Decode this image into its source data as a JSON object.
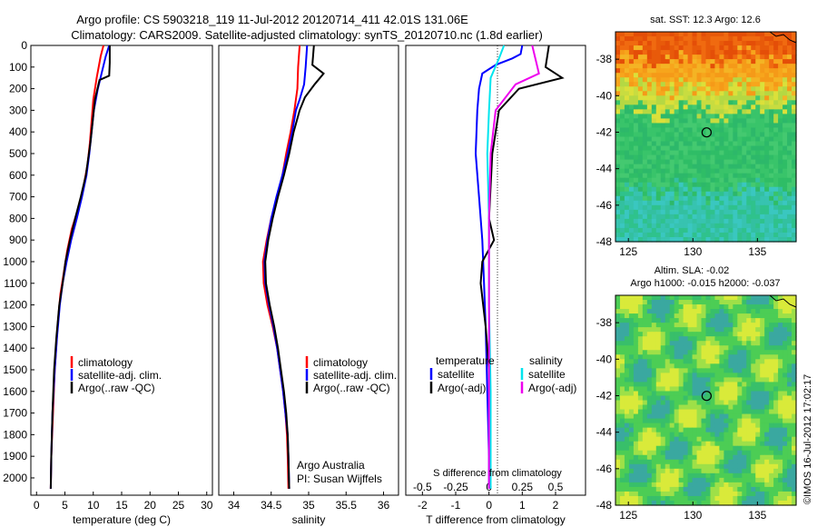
{
  "title_line1": "Argo profile: CS 5903218_119 11-Jul-2012 20120714_411 42.01S 131.06E",
  "title_line2": "Climatology: CARS2009. Satellite-adjusted climatology: synTS_20120710.nc (1.8d earlier)",
  "chart_data": [
    {
      "id": "temperature",
      "type": "line",
      "xlabel": "temperature (deg C)",
      "xlim": [
        -1,
        31
      ],
      "ylim": [
        2080,
        0
      ],
      "xticks": [
        "0",
        "5",
        "10",
        "15",
        "20",
        "25",
        "30"
      ],
      "yticks": [
        "0",
        "100",
        "200",
        "300",
        "400",
        "500",
        "600",
        "700",
        "800",
        "900",
        "1000",
        "1100",
        "1200",
        "1300",
        "1400",
        "1500",
        "1600",
        "1700",
        "1800",
        "1900",
        "2000"
      ],
      "legend": [
        "climatology",
        "satellite-adj. clim.",
        "Argo(..raw -QC)"
      ],
      "colors": [
        "#ff0000",
        "#0000ff",
        "#000000"
      ],
      "series": [
        {
          "name": "climatology",
          "points": [
            [
              11.8,
              0
            ],
            [
              11.3,
              50
            ],
            [
              10.6,
              150
            ],
            [
              10.0,
              250
            ],
            [
              9.7,
              350
            ],
            [
              9.4,
              450
            ],
            [
              9.0,
              550
            ],
            [
              8.3,
              650
            ],
            [
              7.4,
              750
            ],
            [
              6.2,
              850
            ],
            [
              5.4,
              950
            ],
            [
              4.8,
              1050
            ],
            [
              4.2,
              1150
            ],
            [
              3.7,
              1300
            ],
            [
              3.2,
              1500
            ],
            [
              2.9,
              1700
            ],
            [
              2.6,
              1900
            ],
            [
              2.5,
              2050
            ]
          ]
        },
        {
          "name": "satellite-adj. clim.",
          "points": [
            [
              12.8,
              0
            ],
            [
              12.2,
              50
            ],
            [
              10.8,
              200
            ],
            [
              10.1,
              300
            ],
            [
              9.7,
              400
            ],
            [
              9.3,
              500
            ],
            [
              8.8,
              600
            ],
            [
              8.0,
              700
            ],
            [
              7.1,
              800
            ],
            [
              6.1,
              900
            ],
            [
              5.3,
              1000
            ],
            [
              4.6,
              1100
            ],
            [
              4.1,
              1200
            ],
            [
              3.6,
              1350
            ],
            [
              3.2,
              1500
            ],
            [
              2.8,
              1700
            ],
            [
              2.6,
              1900
            ],
            [
              2.5,
              2050
            ]
          ]
        },
        {
          "name": "Argo(..raw -QC)",
          "points": [
            [
              12.9,
              0
            ],
            [
              12.9,
              80
            ],
            [
              12.8,
              140
            ],
            [
              11.1,
              160
            ],
            [
              10.3,
              250
            ],
            [
              9.9,
              350
            ],
            [
              9.5,
              450
            ],
            [
              8.7,
              600
            ],
            [
              7.8,
              700
            ],
            [
              6.8,
              800
            ],
            [
              5.9,
              900
            ],
            [
              5.1,
              1000
            ],
            [
              4.6,
              1100
            ],
            [
              4.0,
              1200
            ],
            [
              3.5,
              1350
            ],
            [
              3.1,
              1500
            ],
            [
              2.8,
              1700
            ],
            [
              2.6,
              1900
            ],
            [
              2.5,
              2050
            ]
          ]
        }
      ]
    },
    {
      "id": "salinity",
      "type": "line",
      "xlabel": "salinity",
      "xlim": [
        33.8,
        36.2
      ],
      "ylim": [
        2080,
        0
      ],
      "xticks": [
        "34",
        "34.5",
        "35",
        "35.5",
        "36"
      ],
      "legend": [
        "climatology",
        "satellite-adj. clim.",
        "Argo(..raw -QC)"
      ],
      "colors": [
        "#ff0000",
        "#0000ff",
        "#000000"
      ],
      "annotation_1": "Argo Australia",
      "annotation_2": "PI: Susan Wijffels",
      "series": [
        {
          "name": "climatology",
          "points": [
            [
              34.88,
              0
            ],
            [
              34.86,
              100
            ],
            [
              34.85,
              200
            ],
            [
              34.81,
              300
            ],
            [
              34.76,
              400
            ],
            [
              34.7,
              500
            ],
            [
              34.65,
              600
            ],
            [
              34.58,
              700
            ],
            [
              34.5,
              800
            ],
            [
              34.44,
              900
            ],
            [
              34.39,
              1000
            ],
            [
              34.4,
              1100
            ],
            [
              34.45,
              1200
            ],
            [
              34.52,
              1300
            ],
            [
              34.58,
              1400
            ],
            [
              34.62,
              1500
            ],
            [
              34.66,
              1600
            ],
            [
              34.69,
              1700
            ],
            [
              34.71,
              1800
            ],
            [
              34.72,
              1900
            ],
            [
              34.73,
              2050
            ]
          ]
        },
        {
          "name": "satellite-adj. clim.",
          "points": [
            [
              34.98,
              0
            ],
            [
              34.96,
              100
            ],
            [
              34.94,
              180
            ],
            [
              34.88,
              250
            ],
            [
              34.83,
              300
            ],
            [
              34.78,
              400
            ],
            [
              34.72,
              500
            ],
            [
              34.65,
              600
            ],
            [
              34.57,
              700
            ],
            [
              34.5,
              800
            ],
            [
              34.45,
              900
            ],
            [
              34.41,
              1000
            ],
            [
              34.42,
              1100
            ],
            [
              34.47,
              1200
            ],
            [
              34.53,
              1300
            ],
            [
              34.58,
              1400
            ],
            [
              34.62,
              1500
            ],
            [
              34.66,
              1600
            ],
            [
              34.69,
              1700
            ],
            [
              34.72,
              1800
            ],
            [
              34.73,
              1900
            ],
            [
              34.74,
              2050
            ]
          ]
        },
        {
          "name": "Argo(..raw -QC)",
          "points": [
            [
              35.07,
              0
            ],
            [
              35.05,
              90
            ],
            [
              35.2,
              130
            ],
            [
              35.08,
              180
            ],
            [
              34.95,
              240
            ],
            [
              34.88,
              300
            ],
            [
              34.8,
              400
            ],
            [
              34.74,
              500
            ],
            [
              34.67,
              600
            ],
            [
              34.59,
              700
            ],
            [
              34.52,
              800
            ],
            [
              34.46,
              900
            ],
            [
              34.42,
              1000
            ],
            [
              34.43,
              1100
            ],
            [
              34.48,
              1200
            ],
            [
              34.54,
              1300
            ],
            [
              34.59,
              1400
            ],
            [
              34.63,
              1500
            ],
            [
              34.67,
              1600
            ],
            [
              34.7,
              1700
            ],
            [
              34.72,
              1800
            ],
            [
              34.73,
              1900
            ],
            [
              34.74,
              2050
            ]
          ]
        }
      ]
    },
    {
      "id": "difference",
      "type": "line",
      "xlabel": "T difference from climatology",
      "top_axis_label": "S difference from climatology",
      "xlim": [
        -2.5,
        2.9
      ],
      "ylim": [
        2080,
        0
      ],
      "xticks": [
        "-2",
        "-1",
        "0",
        "1",
        "2"
      ],
      "top_ticks": [
        "-0.5",
        "-0.25",
        "0",
        "0.25",
        "0.5"
      ],
      "legend_header_left": "temperature",
      "legend_header_right": "salinity",
      "legend_left": [
        "satellite",
        "Argo(-adj)"
      ],
      "legend_right": [
        "satellite",
        "Argo(-adj)"
      ],
      "series": [
        {
          "name": "satellite",
          "color": "#0000ff",
          "points": [
            [
              1.0,
              0
            ],
            [
              0.95,
              40
            ],
            [
              0.7,
              60
            ],
            [
              0.2,
              90
            ],
            [
              -0.2,
              130
            ],
            [
              -0.3,
              200
            ],
            [
              -0.35,
              300
            ],
            [
              -0.4,
              500
            ],
            [
              -0.3,
              700
            ],
            [
              -0.2,
              900
            ],
            [
              -0.15,
              1100
            ],
            [
              -0.1,
              1300
            ],
            [
              -0.05,
              1600
            ],
            [
              0,
              1900
            ],
            [
              0,
              2050
            ]
          ]
        },
        {
          "name": "Argo(-adj)",
          "color": "#000000",
          "points": [
            [
              1.8,
              0
            ],
            [
              1.7,
              100
            ],
            [
              2.2,
              150
            ],
            [
              0.9,
              200
            ],
            [
              0.3,
              300
            ],
            [
              0.1,
              500
            ],
            [
              0.0,
              800
            ],
            [
              0.15,
              900
            ],
            [
              -0.2,
              1000
            ],
            [
              -0.25,
              1100
            ],
            [
              -0.1,
              1300
            ],
            [
              0.0,
              1500
            ],
            [
              0.05,
              1800
            ],
            [
              0.05,
              2050
            ]
          ]
        },
        {
          "name": "satellite",
          "color": "#00e5ee",
          "points": [
            [
              0.45,
              0
            ],
            [
              0.3,
              60
            ],
            [
              0.05,
              150
            ],
            [
              0.0,
              300
            ],
            [
              -0.05,
              500
            ],
            [
              0.0,
              800
            ],
            [
              0.0,
              1200
            ],
            [
              0.05,
              1600
            ],
            [
              0.05,
              2050
            ]
          ]
        },
        {
          "name": "Argo(-adj)",
          "color": "#ee00ee",
          "points": [
            [
              1.3,
              0
            ],
            [
              1.5,
              130
            ],
            [
              0.8,
              180
            ],
            [
              0.2,
              300
            ],
            [
              0.05,
              500
            ],
            [
              0.0,
              800
            ],
            [
              0.0,
              1200
            ],
            [
              0.0,
              1600
            ],
            [
              0.0,
              2050
            ]
          ]
        }
      ]
    },
    {
      "id": "sst_map",
      "type": "heatmap",
      "title": "sat. SST: 12.3 Argo: 12.6",
      "xlim": [
        124,
        138
      ],
      "ylim": [
        -48,
        -36.5
      ],
      "xticks": [
        "125",
        "130",
        "135"
      ],
      "yticks": [
        "-38",
        "-40",
        "-42",
        "-44",
        "-46",
        "-48"
      ],
      "marker": [
        131.06,
        -42.01
      ]
    },
    {
      "id": "sla_map",
      "type": "heatmap",
      "title_line1": "Altim. SLA: -0.02",
      "title_line2": "Argo h1000: -0.015 h2000: -0.037",
      "xlim": [
        124,
        138
      ],
      "ylim": [
        -48,
        -36.5
      ],
      "xticks": [
        "125",
        "130",
        "135"
      ],
      "yticks": [
        "-38",
        "-40",
        "-42",
        "-44",
        "-46",
        "-48"
      ],
      "marker": [
        131.06,
        -42.01
      ]
    }
  ],
  "credit": "©IMOS 16-Jul-2012 17:02:17"
}
